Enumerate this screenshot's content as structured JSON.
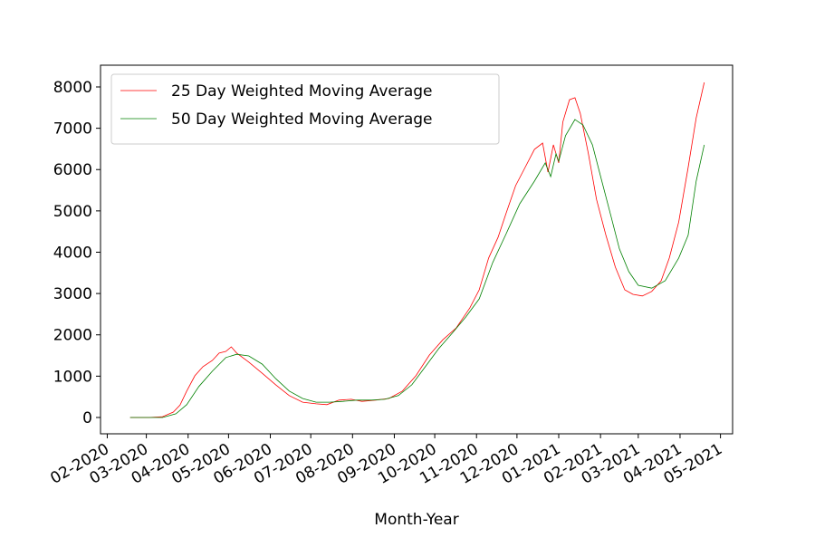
{
  "chart_data": {
    "type": "line",
    "xlabel": "Month-Year",
    "xlim": [
      18288,
      18757
    ],
    "xticks": [
      {
        "value": 18293,
        "label": "02-2020"
      },
      {
        "value": 18322,
        "label": "03-2020"
      },
      {
        "value": 18353,
        "label": "04-2020"
      },
      {
        "value": 18383,
        "label": "05-2020"
      },
      {
        "value": 18414,
        "label": "06-2020"
      },
      {
        "value": 18444,
        "label": "07-2020"
      },
      {
        "value": 18475,
        "label": "08-2020"
      },
      {
        "value": 18506,
        "label": "09-2020"
      },
      {
        "value": 18536,
        "label": "10-2020"
      },
      {
        "value": 18567,
        "label": "11-2020"
      },
      {
        "value": 18597,
        "label": "12-2020"
      },
      {
        "value": 18628,
        "label": "01-2021"
      },
      {
        "value": 18659,
        "label": "02-2021"
      },
      {
        "value": 18687,
        "label": "03-2021"
      },
      {
        "value": 18718,
        "label": "04-2021"
      },
      {
        "value": 18748,
        "label": "05-2021"
      }
    ],
    "ylim": [
      -395,
      8526
    ],
    "yticks": [
      0,
      1000,
      2000,
      3000,
      4000,
      5000,
      6000,
      7000,
      8000
    ],
    "grid": false,
    "legend": "upper-left",
    "series": [
      {
        "name": "25 Day Weighted Moving Average",
        "color": "#ff0000",
        "x": [
          18310,
          18324,
          18334,
          18342,
          18347,
          18352,
          18358,
          18364,
          18371,
          18376,
          18381,
          18385,
          18389,
          18398,
          18408,
          18418,
          18428,
          18438,
          18448,
          18456,
          18465,
          18474,
          18482,
          18492,
          18502,
          18512,
          18522,
          18532,
          18542,
          18552,
          18562,
          18569,
          18576,
          18583,
          18589,
          18596,
          18603,
          18610,
          18616,
          18620,
          18624,
          18628,
          18631,
          18636,
          18640,
          18644,
          18650,
          18656,
          18663,
          18670,
          18677,
          18683,
          18690,
          18697,
          18704,
          18710,
          18717,
          18724,
          18730,
          18736
        ],
        "values": [
          0,
          0,
          20,
          130,
          300,
          640,
          1010,
          1230,
          1380,
          1560,
          1600,
          1710,
          1560,
          1340,
          1070,
          790,
          530,
          370,
          330,
          310,
          420,
          440,
          390,
          420,
          460,
          640,
          1010,
          1510,
          1880,
          2170,
          2650,
          3090,
          3860,
          4360,
          4950,
          5610,
          6050,
          6490,
          6640,
          5940,
          6600,
          6160,
          7150,
          7690,
          7740,
          7360,
          6380,
          5280,
          4410,
          3640,
          3090,
          2980,
          2940,
          3050,
          3310,
          3860,
          4730,
          6050,
          7250,
          8110
        ]
      },
      {
        "name": "50 Day Weighted Moving Average",
        "color": "#008000",
        "x": [
          18310,
          18334,
          18344,
          18352,
          18361,
          18371,
          18381,
          18389,
          18398,
          18408,
          18418,
          18428,
          18438,
          18448,
          18458,
          18468,
          18478,
          18489,
          18499,
          18509,
          18519,
          18529,
          18539,
          18549,
          18559,
          18569,
          18579,
          18589,
          18599,
          18610,
          18618,
          18622,
          18626,
          18628,
          18633,
          18640,
          18646,
          18653,
          18660,
          18667,
          18673,
          18680,
          18687,
          18697,
          18707,
          18717,
          18724,
          18730,
          18736
        ],
        "values": [
          0,
          0,
          90,
          310,
          750,
          1120,
          1450,
          1530,
          1490,
          1290,
          940,
          640,
          460,
          370,
          370,
          390,
          420,
          420,
          440,
          530,
          790,
          1230,
          1670,
          2040,
          2430,
          2870,
          3750,
          4450,
          5170,
          5720,
          6160,
          5830,
          6380,
          6200,
          6820,
          7210,
          7080,
          6600,
          5720,
          4840,
          4080,
          3530,
          3200,
          3130,
          3310,
          3860,
          4410,
          5720,
          6600
        ]
      }
    ]
  }
}
